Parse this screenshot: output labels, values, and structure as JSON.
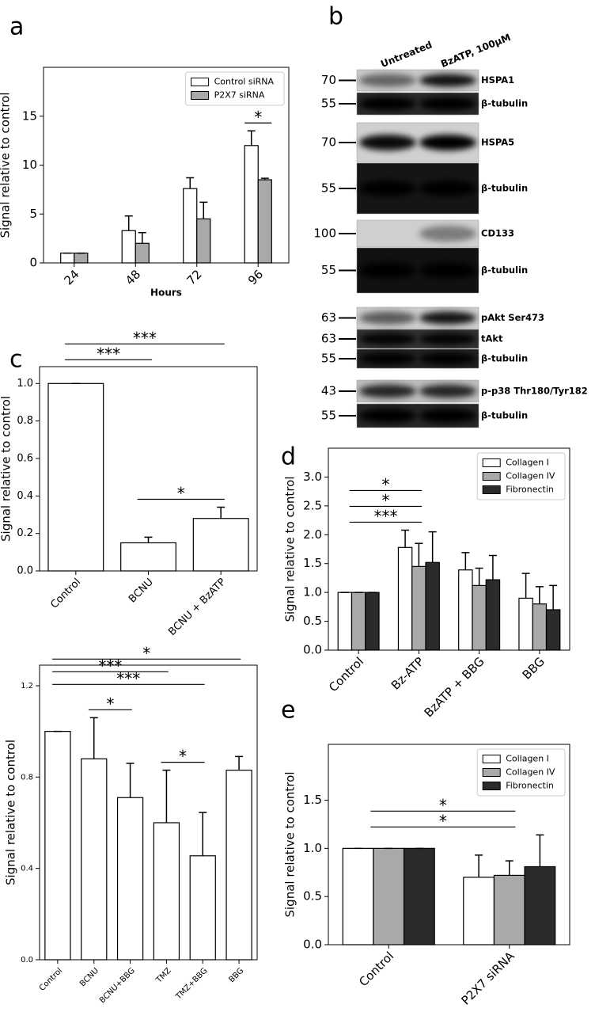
{
  "chart_data": [
    {
      "type": "bar",
      "panel": "a",
      "xlabel": "Hours",
      "ylabel": "Signal relative to control",
      "categories": [
        "24",
        "48",
        "72",
        "96"
      ],
      "series": [
        {
          "name": "Control siRNA",
          "color": "#ffffff",
          "values": [
            1,
            3.3,
            7.6,
            12
          ],
          "errors": [
            0,
            1.5,
            1.1,
            1.5
          ]
        },
        {
          "name": "P2X7 siRNA",
          "color": "#a9a9a9",
          "values": [
            1,
            2,
            4.5,
            8.5
          ],
          "errors": [
            0,
            1.1,
            1.7,
            0.15
          ]
        }
      ],
      "ylim": [
        0,
        20
      ],
      "yticks": [
        0,
        5,
        10,
        15
      ],
      "legend": "upper right",
      "brackets": [
        {
          "from": "96",
          "to": "96",
          "label": "*"
        }
      ]
    },
    {
      "type": "bar",
      "panel": "c",
      "ylabel": "Signal relative to control",
      "categories": [
        "Control",
        "BCNU",
        "BCNU + BzATP"
      ],
      "values": [
        1,
        0.15,
        0.28
      ],
      "errors": [
        0,
        0.03,
        0.06
      ],
      "color": "#ffffff",
      "ylim": [
        0,
        1.09
      ],
      "yticks": [
        {
          "value": 0,
          "label": "0.0"
        },
        0.2,
        0.4,
        0.6,
        0.8,
        {
          "value": 1,
          "label": "1.0"
        }
      ],
      "brackets": [
        {
          "from": "BCNU",
          "to": "BCNU + BzATP",
          "label": "*"
        },
        {
          "from": "Control",
          "to": "BCNU",
          "label": "***"
        },
        {
          "from": "Control",
          "to": "BCNU + BzATP",
          "label": "***"
        }
      ]
    },
    {
      "type": "bar",
      "ylabel": "Signal relative to control",
      "categories": [
        "Control",
        "BCNU",
        "BCNU+BBG",
        "TMZ",
        "TMZ+BBG",
        "BBG"
      ],
      "values": [
        1,
        0.88,
        0.71,
        0.6,
        0.455,
        0.83
      ],
      "errors": [
        0,
        0.18,
        0.15,
        0.23,
        0.19,
        0.06
      ],
      "color": "#ffffff",
      "ylim": [
        0,
        1.29
      ],
      "yticks": [
        {
          "value": 0,
          "label": "0.0"
        },
        0.4,
        0.8,
        1.2
      ],
      "brackets": [
        {
          "from": "BCNU",
          "to": "BCNU+BBG",
          "label": "*"
        },
        {
          "from": "TMZ",
          "to": "TMZ+BBG",
          "label": "*"
        },
        {
          "from": "Control",
          "to": "TMZ+BBG",
          "label": "***"
        },
        {
          "from": "Control",
          "to": "TMZ",
          "label": "***"
        },
        {
          "from": "Control",
          "to": "BBG",
          "label": "*"
        }
      ]
    },
    {
      "type": "bar",
      "panel": "d",
      "ylabel": "Signal relative to control",
      "categories": [
        "Control",
        "Bz-ATP",
        "BzATP + BBG",
        "BBG"
      ],
      "series": [
        {
          "name": "Collagen I",
          "color": "#ffffff",
          "values": [
            1,
            1.78,
            1.39,
            0.9
          ],
          "errors": [
            0,
            0.3,
            0.3,
            0.43
          ]
        },
        {
          "name": "Collagen IV",
          "color": "#a9a9a9",
          "values": [
            1,
            1.45,
            1.12,
            0.8
          ],
          "errors": [
            0,
            0.4,
            0.3,
            0.3
          ]
        },
        {
          "name": "Fibronectin",
          "color": "#2b2b2b",
          "values": [
            1,
            1.52,
            1.22,
            0.7
          ],
          "errors": [
            0,
            0.53,
            0.42,
            0.42
          ]
        }
      ],
      "ylim": [
        0,
        3.5
      ],
      "yticks": [
        {
          "value": 0,
          "label": "0.0"
        },
        0.5,
        {
          "value": 1,
          "label": "1.0"
        },
        1.5,
        {
          "value": 2,
          "label": "2.0"
        },
        2.5,
        {
          "value": 3,
          "label": "3.0"
        }
      ],
      "legend": "upper right",
      "brackets": [
        {
          "from": "Control",
          "to": "Bz-ATP",
          "label": "***"
        },
        {
          "from": "Control",
          "to": "Bz-ATP",
          "label": "*"
        },
        {
          "from": "Control",
          "to": "Bz-ATP",
          "label": "*"
        }
      ]
    },
    {
      "type": "bar",
      "panel": "e",
      "ylabel": "Signal relative to control",
      "categories": [
        "Control",
        "P2X7 siRNA"
      ],
      "series": [
        {
          "name": "Collagen I",
          "color": "#ffffff",
          "values": [
            1,
            0.7
          ],
          "errors": [
            0,
            0.23
          ]
        },
        {
          "name": "Collagen IV",
          "color": "#a9a9a9",
          "values": [
            1,
            0.72
          ],
          "errors": [
            0,
            0.15
          ]
        },
        {
          "name": "Fibronectin",
          "color": "#2b2b2b",
          "values": [
            1,
            0.81
          ],
          "errors": [
            0,
            0.33
          ]
        }
      ],
      "ylim": [
        0,
        2.08
      ],
      "yticks": [
        {
          "value": 0,
          "label": "0.0"
        },
        0.5,
        {
          "value": 1,
          "label": "1.0"
        },
        1.5
      ],
      "legend": "upper right",
      "brackets": [
        {
          "from": "Control",
          "to": "P2X7 siRNA",
          "label": "*"
        },
        {
          "from": "Control",
          "to": "P2X7 siRNA",
          "label": "*"
        }
      ]
    }
  ],
  "blot": {
    "panel": "b",
    "columns": [
      "Untreated",
      "BzATP, 100μM"
    ],
    "rows": [
      {
        "marker": 70,
        "label": "HSPA1"
      },
      {
        "marker": 55,
        "label": "β-tubulin"
      },
      {
        "marker": 70,
        "label": "HSPA5"
      },
      {
        "marker": 55,
        "label": "β-tubulin"
      },
      {
        "marker": 100,
        "label": "CD133"
      },
      {
        "marker": 55,
        "label": "β-tubulin"
      },
      {
        "marker": 63,
        "label": "pAkt Ser473"
      },
      {
        "marker": 63,
        "label": "tAkt"
      },
      {
        "marker": 55,
        "label": "β-tubulin"
      },
      {
        "marker": 43,
        "label": "p-p38 Thr180/Tyr182"
      },
      {
        "marker": 55,
        "label": "β-tubulin"
      }
    ]
  }
}
